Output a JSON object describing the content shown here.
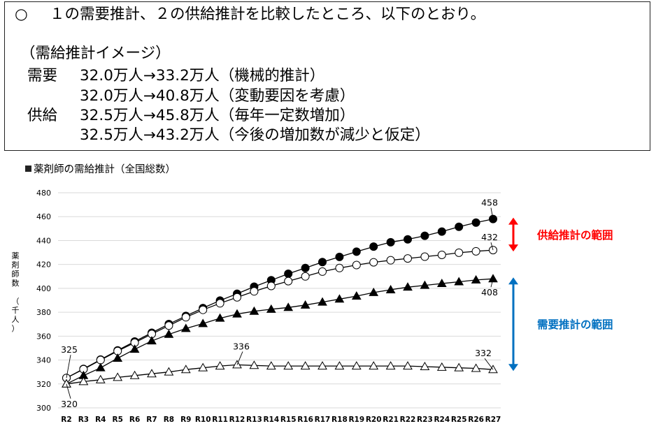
{
  "summary": {
    "bullet": "○",
    "heading": "１の需要推計、２の供給推計を比較したところ、以下のとおり。",
    "subheading": "（需給推計イメージ）",
    "demand_label": "需要",
    "demand_line1": "32.0万人→33.2万人（機械的推計）",
    "demand_line2": "32.0万人→40.8万人（変動要因を考慮）",
    "supply_label": "供給",
    "supply_line1": "32.5万人→45.8万人（毎年一定数増加）",
    "supply_line2": "32.5万人→43.2万人（今後の増加数が減少と仮定）"
  },
  "chart_title": "薬剤師の需給推計（全国総数）",
  "colors": {
    "supply_arrow": "#ff0000",
    "demand_arrow": "#0070c0",
    "gridline": "#d9d9d9",
    "line": "#000000"
  },
  "chart_data": {
    "type": "line",
    "ylabel": "薬剤師数 （千人）",
    "ylim": [
      300,
      480
    ],
    "yticks": [
      300,
      320,
      340,
      360,
      380,
      400,
      420,
      440,
      460,
      480
    ],
    "grid": true,
    "categories": [
      "R2",
      "R3",
      "R4",
      "R5",
      "R6",
      "R7",
      "R8",
      "R9",
      "R10",
      "R11",
      "R12",
      "R13",
      "R14",
      "R15",
      "R16",
      "R17",
      "R18",
      "R19",
      "R20",
      "R21",
      "R22",
      "R23",
      "R24",
      "R25",
      "R26",
      "R27"
    ],
    "series": [
      {
        "marker": "filled-circle",
        "values": [
          325,
          332.6,
          340.4,
          348.1,
          355.5,
          362.8,
          370.1,
          376.9,
          383.5,
          389.8,
          395.5,
          401.4,
          406.8,
          412.2,
          417,
          422,
          426.3,
          430.7,
          434.9,
          438.6,
          441,
          444,
          447.5,
          451.5,
          455,
          458
        ]
      },
      {
        "marker": "open-circle",
        "values": [
          325,
          332.3,
          340,
          347.5,
          354.5,
          361.8,
          368.8,
          375.8,
          382,
          387.5,
          392.5,
          397.5,
          402,
          406,
          410,
          414,
          417,
          419.5,
          421.8,
          423.5,
          425,
          426.5,
          428,
          429.8,
          431,
          432
        ]
      },
      {
        "marker": "filled-triangle",
        "values": [
          320,
          327,
          333.5,
          341.5,
          349,
          356,
          361.5,
          366.4,
          370.5,
          375,
          378.5,
          380.8,
          382.5,
          384,
          386,
          388.5,
          391,
          393.5,
          396.5,
          398.8,
          401,
          402.5,
          404,
          405.5,
          407,
          408
        ]
      },
      {
        "marker": "open-triangle",
        "values": [
          320,
          322,
          323.5,
          325.5,
          327,
          328.5,
          330,
          332,
          333.5,
          335,
          336,
          335.5,
          335,
          335,
          335,
          335,
          335,
          335,
          335,
          335,
          335,
          334.5,
          334,
          333.5,
          333,
          332
        ]
      }
    ],
    "annotations": [
      {
        "text": "458",
        "series": 0,
        "index": 25
      },
      {
        "text": "432",
        "series": 1,
        "index": 25
      },
      {
        "text": "408",
        "series": 2,
        "index": 25
      },
      {
        "text": "332",
        "series": 3,
        "index": 25
      },
      {
        "text": "336",
        "series": 3,
        "index": 10
      },
      {
        "text": "325",
        "series": 0,
        "index": 0
      },
      {
        "text": "320",
        "series": 3,
        "index": 0
      }
    ],
    "range_labels": [
      {
        "text": "供給推計の範囲",
        "color": "#ff0000",
        "from": 458,
        "to": 432
      },
      {
        "text": "需要推計の範囲",
        "color": "#0070c0",
        "from": 408,
        "to": 332
      }
    ]
  }
}
